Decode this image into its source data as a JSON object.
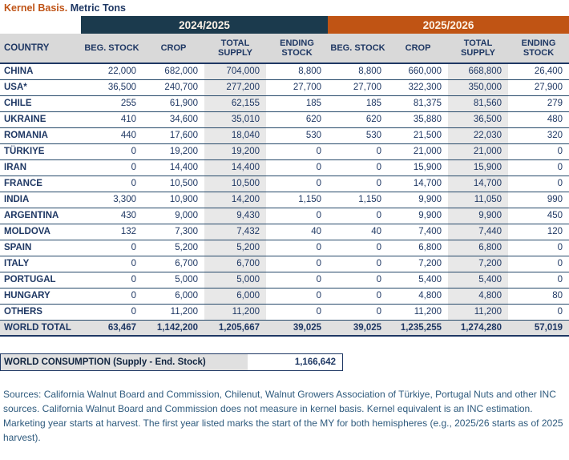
{
  "title": {
    "accent": "Kernel Basis.",
    "rest": " Metric Tons"
  },
  "colors": {
    "band_navy": "#1b3a4d",
    "band_orange": "#c05414",
    "text_navy": "#1f3864",
    "header_gray": "#d9d9d9",
    "column_shade_gray": "#e8e8e8",
    "total_row_gray": "#e0e0e0",
    "footer_blue": "#2e5a7d",
    "title_accent_orange": "#bf5417"
  },
  "table": {
    "year_groups": [
      "2024/2025",
      "2025/2026"
    ],
    "country_header": "COUNTRY",
    "columns": [
      "BEG. STOCK",
      "CROP",
      "TOTAL SUPPLY",
      "ENDING STOCK",
      "BEG. STOCK",
      "CROP",
      "TOTAL SUPPLY",
      "ENDING STOCK"
    ],
    "rows": [
      {
        "country": "CHINA",
        "values": [
          "22,000",
          "682,000",
          "704,000",
          "8,800",
          "8,800",
          "660,000",
          "668,800",
          "26,400"
        ]
      },
      {
        "country": "USA*",
        "values": [
          "36,500",
          "240,700",
          "277,200",
          "27,700",
          "27,700",
          "322,300",
          "350,000",
          "27,900"
        ]
      },
      {
        "country": "CHILE",
        "values": [
          "255",
          "61,900",
          "62,155",
          "185",
          "185",
          "81,375",
          "81,560",
          "279"
        ]
      },
      {
        "country": "UKRAINE",
        "values": [
          "410",
          "34,600",
          "35,010",
          "620",
          "620",
          "35,880",
          "36,500",
          "480"
        ]
      },
      {
        "country": "ROMANIA",
        "values": [
          "440",
          "17,600",
          "18,040",
          "530",
          "530",
          "21,500",
          "22,030",
          "320"
        ]
      },
      {
        "country": "TÜRKIYE",
        "values": [
          "0",
          "19,200",
          "19,200",
          "0",
          "0",
          "21,000",
          "21,000",
          "0"
        ]
      },
      {
        "country": "IRAN",
        "values": [
          "0",
          "14,400",
          "14,400",
          "0",
          "0",
          "15,900",
          "15,900",
          "0"
        ]
      },
      {
        "country": "FRANCE",
        "values": [
          "0",
          "10,500",
          "10,500",
          "0",
          "0",
          "14,700",
          "14,700",
          "0"
        ]
      },
      {
        "country": "INDIA",
        "values": [
          "3,300",
          "10,900",
          "14,200",
          "1,150",
          "1,150",
          "9,900",
          "11,050",
          "990"
        ]
      },
      {
        "country": "ARGENTINA",
        "values": [
          "430",
          "9,000",
          "9,430",
          "0",
          "0",
          "9,900",
          "9,900",
          "450"
        ]
      },
      {
        "country": "MOLDOVA",
        "values": [
          "132",
          "7,300",
          "7,432",
          "40",
          "40",
          "7,400",
          "7,440",
          "120"
        ]
      },
      {
        "country": "SPAIN",
        "values": [
          "0",
          "5,200",
          "5,200",
          "0",
          "0",
          "6,800",
          "6,800",
          "0"
        ]
      },
      {
        "country": "ITALY",
        "values": [
          "0",
          "6,700",
          "6,700",
          "0",
          "0",
          "7,200",
          "7,200",
          "0"
        ]
      },
      {
        "country": "PORTUGAL",
        "values": [
          "0",
          "5,000",
          "5,000",
          "0",
          "0",
          "5,400",
          "5,400",
          "0"
        ]
      },
      {
        "country": "HUNGARY",
        "values": [
          "0",
          "6,000",
          "6,000",
          "0",
          "0",
          "4,800",
          "4,800",
          "80"
        ]
      },
      {
        "country": "OTHERS",
        "values": [
          "0",
          "11,200",
          "11,200",
          "0",
          "0",
          "11,200",
          "11,200",
          "0"
        ]
      }
    ],
    "world_total": {
      "label": "WORLD TOTAL",
      "values": [
        "63,467",
        "1,142,200",
        "1,205,667",
        "39,025",
        "39,025",
        "1,235,255",
        "1,274,280",
        "57,019"
      ]
    }
  },
  "consumption": {
    "label": "WORLD CONSUMPTION (Supply - End. Stock)",
    "value": "1,166,642"
  },
  "footer": {
    "text": "Sources: California Walnut Board and Commission, Chilenut, Walnut Growers Association of Türkiye, Portugal Nuts and other INC sources. California Walnut Board and Commission does not measure in kernel basis. Kernel equivalent is an INC estimation. Marketing year starts at harvest. The first year listed marks the start of the MY for both hemispheres (e.g., 2025/26 starts as of 2025 harvest)."
  }
}
